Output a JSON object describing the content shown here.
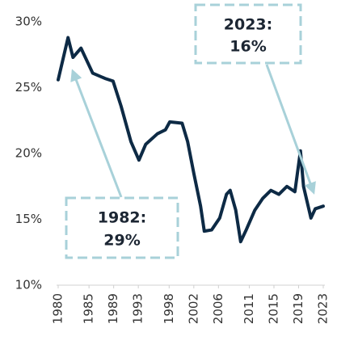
{
  "chart_data": {
    "type": "line",
    "x": [
      1980,
      1981.6,
      1982.4,
      1983.7,
      1985.6,
      1987.6,
      1988.9,
      1990.2,
      1991.8,
      1993.1,
      1994.2,
      1996.1,
      1997.4,
      1998.1,
      2000.1,
      2001,
      2002,
      2003.1,
      2003.7,
      2004.9,
      2006.2,
      2007.3,
      2007.9,
      2008.8,
      2009.6,
      2010.5,
      2011.9,
      2013.2,
      2014.5,
      2015.8,
      2017.1,
      2018.4,
      2019.3,
      2019.8,
      2021,
      2021.7,
      2023
    ],
    "series": [
      {
        "color": "#0d2a45",
        "values": [
          25.6,
          28.8,
          27.3,
          28,
          26.1,
          25.7,
          25.5,
          23.6,
          20.9,
          19.5,
          20.7,
          21.5,
          21.8,
          22.4,
          22.3,
          20.9,
          18.5,
          16,
          14.1,
          14.2,
          15.1,
          16.9,
          17.2,
          15.7,
          13.3,
          14.2,
          15.7,
          16.6,
          17.2,
          16.9,
          17.5,
          17.1,
          20.2,
          17.5,
          15.1,
          15.8,
          16
        ]
      }
    ],
    "xlim": [
      1980,
      2023
    ],
    "xticks": [
      1980,
      1985,
      1989,
      1993,
      1998,
      2002,
      2006,
      2011,
      2015,
      2019,
      2023
    ],
    "ylim": [
      10,
      30
    ],
    "yticks": [
      {
        "value": 10,
        "label": "10%"
      },
      {
        "value": 15,
        "label": "15%"
      },
      {
        "value": 20,
        "label": "20%"
      },
      {
        "value": 25,
        "label": "25%"
      },
      {
        "value": 30,
        "label": "30%"
      }
    ],
    "annotations": [
      {
        "lines": [
          "2023:",
          "16%"
        ]
      },
      {
        "lines": [
          "1982:",
          "29%"
        ]
      }
    ]
  }
}
